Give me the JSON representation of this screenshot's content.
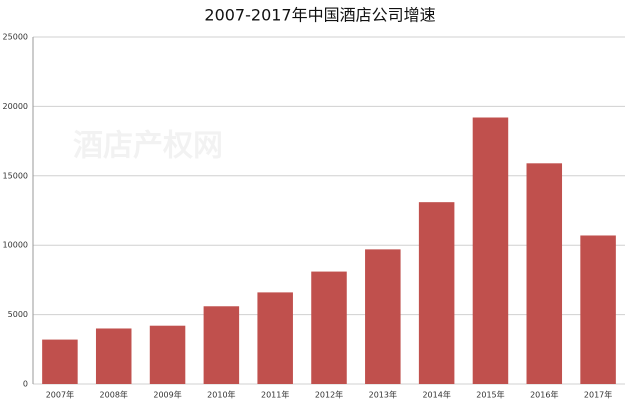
{
  "chart_data": {
    "type": "bar",
    "title": "2007-2017年中国酒店公司增速",
    "watermark": "酒店产权网",
    "categories": [
      "2007年",
      "2008年",
      "2009年",
      "2010年",
      "2011年",
      "2012年",
      "2013年",
      "2014年",
      "2015年",
      "2016年",
      "2017年"
    ],
    "values": [
      3200,
      4000,
      4200,
      5600,
      6600,
      8100,
      9700,
      13100,
      19200,
      15900,
      10700
    ],
    "color": "#c0504d",
    "ylim": [
      0,
      25000
    ],
    "yticks": [
      0,
      5000,
      10000,
      15000,
      20000,
      25000
    ],
    "grid": true
  }
}
